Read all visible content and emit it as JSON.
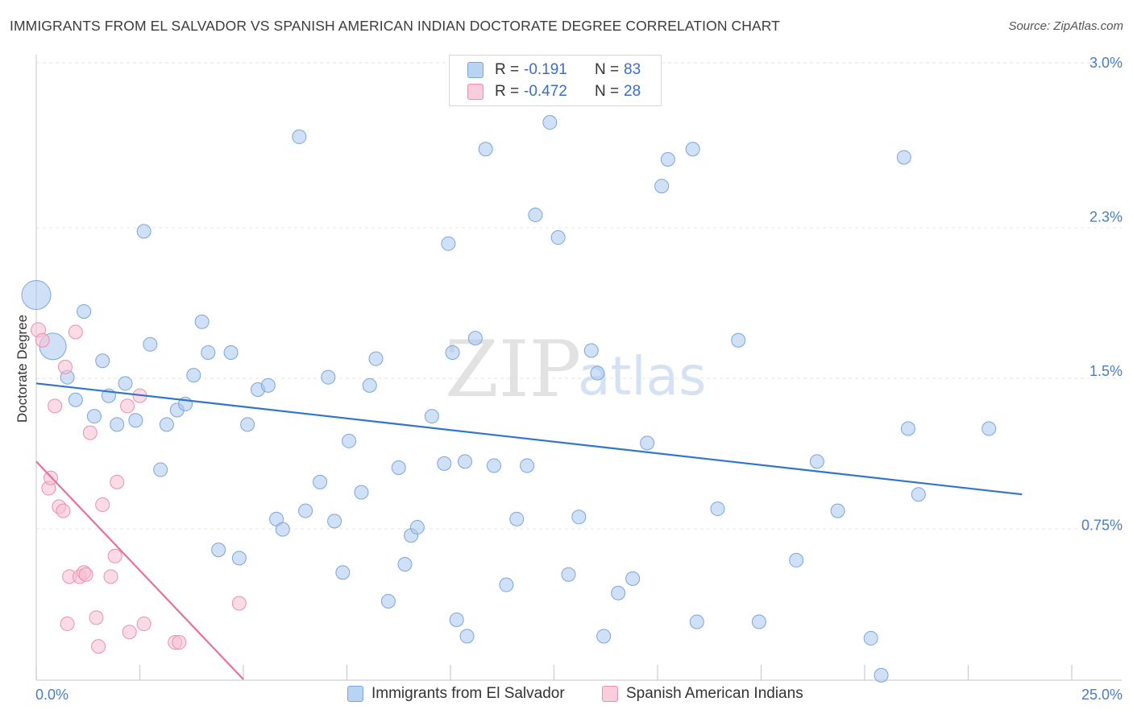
{
  "title": "IMMIGRANTS FROM EL SALVADOR VS SPANISH AMERICAN INDIAN DOCTORATE DEGREE CORRELATION CHART",
  "source": "Source: ZipAtlas.com",
  "watermark": {
    "zip": "ZIP",
    "atlas": "atlas"
  },
  "legend": {
    "rows": [
      {
        "r_label": "R =",
        "r_value": "-0.191",
        "n_label": "N =",
        "n_value": "83"
      },
      {
        "r_label": "R =",
        "r_value": "-0.472",
        "n_label": "N =",
        "n_value": "28"
      }
    ]
  },
  "bottom_legend": [
    "Immigrants from El Salvador",
    "Spanish American Indians"
  ],
  "chart_data": {
    "type": "scatter",
    "ylabel": "Doctorate Degree",
    "xlabel": "",
    "x_tick_labels": [
      "0.0%",
      "25.0%"
    ],
    "y_tick_labels": [
      "0.75%",
      "1.5%",
      "2.3%",
      "3.0%"
    ],
    "xlim": [
      0,
      25
    ],
    "ylim": [
      0,
      3.0
    ],
    "y_ticks": [
      0.75,
      1.5,
      2.25,
      3.0
    ],
    "grid": "horizontal dashed",
    "colors": {
      "blue_fill": "#a9c8f0",
      "blue_stroke": "#7aa6dd",
      "blue_line": "#2f74d0",
      "pink_fill": "#f7bfd1",
      "pink_stroke": "#ec8fae",
      "pink_line": "#e8709a"
    },
    "series": [
      {
        "name": "Immigrants from El Salvador",
        "color": "blue",
        "trend": {
          "x0": 0.0,
          "y0": 1.44,
          "x1": 23.8,
          "y1": 0.9
        },
        "points": [
          [
            0.0,
            1.87,
            12
          ],
          [
            0.4,
            1.62,
            11
          ],
          [
            0.75,
            1.47,
            4
          ],
          [
            0.95,
            1.36,
            4
          ],
          [
            1.15,
            1.79,
            4
          ],
          [
            1.4,
            1.28,
            4
          ],
          [
            1.6,
            1.55,
            4
          ],
          [
            1.75,
            1.38,
            4
          ],
          [
            1.95,
            1.24,
            4
          ],
          [
            2.15,
            1.44,
            4
          ],
          [
            2.4,
            1.26,
            4
          ],
          [
            2.6,
            2.18,
            4
          ],
          [
            2.75,
            1.63,
            4
          ],
          [
            3.0,
            1.02,
            4
          ],
          [
            3.15,
            1.24,
            4
          ],
          [
            3.4,
            1.31,
            4
          ],
          [
            3.6,
            1.34,
            4
          ],
          [
            3.8,
            1.48,
            4
          ],
          [
            4.0,
            1.74,
            4
          ],
          [
            4.15,
            1.59,
            4
          ],
          [
            4.4,
            0.63,
            4
          ],
          [
            4.7,
            1.59,
            4
          ],
          [
            4.9,
            0.59,
            4
          ],
          [
            5.1,
            1.24,
            4
          ],
          [
            5.35,
            1.41,
            4
          ],
          [
            5.6,
            1.43,
            4
          ],
          [
            5.8,
            0.78,
            4
          ],
          [
            5.95,
            0.73,
            4
          ],
          [
            6.35,
            2.64,
            4
          ],
          [
            6.5,
            0.82,
            4
          ],
          [
            6.85,
            0.96,
            4
          ],
          [
            7.05,
            1.47,
            4
          ],
          [
            7.2,
            0.77,
            4
          ],
          [
            7.4,
            0.52,
            4
          ],
          [
            7.55,
            1.16,
            4
          ],
          [
            7.85,
            0.91,
            4
          ],
          [
            8.05,
            1.43,
            4
          ],
          [
            8.2,
            1.56,
            4
          ],
          [
            8.5,
            0.38,
            4
          ],
          [
            8.75,
            1.03,
            4
          ],
          [
            8.9,
            0.56,
            4
          ],
          [
            9.05,
            0.7,
            4
          ],
          [
            9.2,
            0.74,
            4
          ],
          [
            9.55,
            1.28,
            4
          ],
          [
            9.85,
            1.05,
            4
          ],
          [
            9.95,
            2.12,
            4
          ],
          [
            10.05,
            1.59,
            4
          ],
          [
            10.15,
            0.29,
            4
          ],
          [
            10.35,
            1.06,
            4
          ],
          [
            10.4,
            0.21,
            4
          ],
          [
            10.6,
            1.66,
            4
          ],
          [
            10.85,
            2.58,
            4
          ],
          [
            11.05,
            1.04,
            4
          ],
          [
            11.35,
            0.46,
            4
          ],
          [
            11.6,
            0.78,
            4
          ],
          [
            11.85,
            1.04,
            4
          ],
          [
            12.05,
            2.26,
            4
          ],
          [
            12.4,
            2.71,
            4
          ],
          [
            12.6,
            2.15,
            4
          ],
          [
            12.85,
            0.51,
            4
          ],
          [
            13.1,
            0.79,
            4
          ],
          [
            13.4,
            1.6,
            4
          ],
          [
            13.55,
            1.49,
            4
          ],
          [
            13.7,
            0.21,
            4
          ],
          [
            14.05,
            0.42,
            4
          ],
          [
            14.4,
            0.49,
            4
          ],
          [
            14.75,
            1.15,
            4
          ],
          [
            15.1,
            2.4,
            4
          ],
          [
            15.25,
            2.53,
            4
          ],
          [
            15.85,
            2.58,
            4
          ],
          [
            15.95,
            0.28,
            4
          ],
          [
            16.45,
            0.83,
            4
          ],
          [
            16.95,
            1.65,
            4
          ],
          [
            17.45,
            0.28,
            4
          ],
          [
            18.35,
            0.58,
            4
          ],
          [
            18.85,
            1.06,
            4
          ],
          [
            19.35,
            0.82,
            4
          ],
          [
            20.15,
            0.2,
            4
          ],
          [
            20.4,
            0.02,
            4
          ],
          [
            20.95,
            2.54,
            4
          ],
          [
            21.05,
            1.22,
            4
          ],
          [
            21.3,
            0.9,
            4
          ],
          [
            23.0,
            1.22,
            4
          ]
        ]
      },
      {
        "name": "Spanish American Indians",
        "color": "pink",
        "trend": {
          "x0": 0.0,
          "y0": 1.06,
          "x1": 5.0,
          "y1": 0.0
        },
        "points": [
          [
            0.05,
            1.7,
            6
          ],
          [
            0.15,
            1.65,
            4
          ],
          [
            0.3,
            0.93,
            4
          ],
          [
            0.35,
            0.98,
            4
          ],
          [
            0.45,
            1.33,
            4
          ],
          [
            0.55,
            0.84,
            4
          ],
          [
            0.65,
            0.82,
            4
          ],
          [
            0.7,
            1.52,
            4
          ],
          [
            0.75,
            0.27,
            4
          ],
          [
            0.8,
            0.5,
            4
          ],
          [
            0.95,
            1.69,
            4
          ],
          [
            1.05,
            0.5,
            4
          ],
          [
            1.15,
            0.52,
            4
          ],
          [
            1.2,
            0.51,
            4
          ],
          [
            1.3,
            1.2,
            4
          ],
          [
            1.45,
            0.3,
            4
          ],
          [
            1.5,
            0.16,
            4
          ],
          [
            1.6,
            0.85,
            4
          ],
          [
            1.8,
            0.5,
            4
          ],
          [
            1.9,
            0.6,
            4
          ],
          [
            1.95,
            0.96,
            4
          ],
          [
            2.2,
            1.33,
            4
          ],
          [
            2.25,
            0.23,
            4
          ],
          [
            2.5,
            1.38,
            4
          ],
          [
            2.6,
            0.27,
            4
          ],
          [
            3.35,
            0.18,
            4
          ],
          [
            3.45,
            0.18,
            4
          ],
          [
            4.9,
            0.37,
            4
          ]
        ]
      }
    ]
  }
}
